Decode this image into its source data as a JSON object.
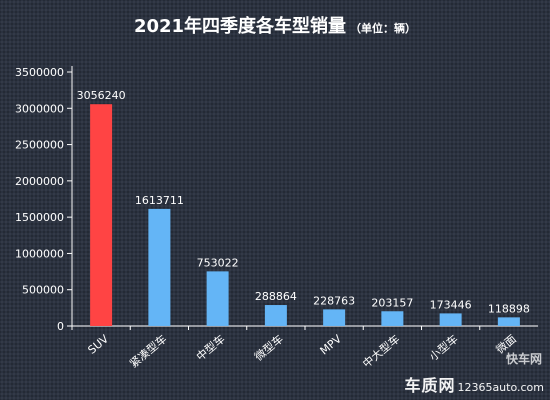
{
  "title": {
    "main": "2021年四季度各车型销量",
    "unit": "（单位：辆）"
  },
  "watermark": {
    "brand": "车质网",
    "site": "12365auto.com",
    "logo": "快车网"
  },
  "colors": {
    "highlight": "#ff4444",
    "bar": "#64b5f6",
    "text": "#ffffff",
    "axis": "#ffffff",
    "background": "#2b3240"
  },
  "chart_data": {
    "type": "bar",
    "categories": [
      "SUV",
      "紧凑型车",
      "中型车",
      "微型车",
      "MPV",
      "中大型车",
      "小型车",
      "微面"
    ],
    "values": [
      3056240,
      1613711,
      753022,
      288864,
      228763,
      203157,
      173446,
      118898
    ],
    "highlight_category": "SUV",
    "yticks": [
      0,
      500000,
      1000000,
      1500000,
      2000000,
      2500000,
      3000000,
      3500000
    ],
    "ylim": [
      0,
      3500000
    ],
    "grid": false,
    "legend": "none",
    "data_labels": true
  }
}
